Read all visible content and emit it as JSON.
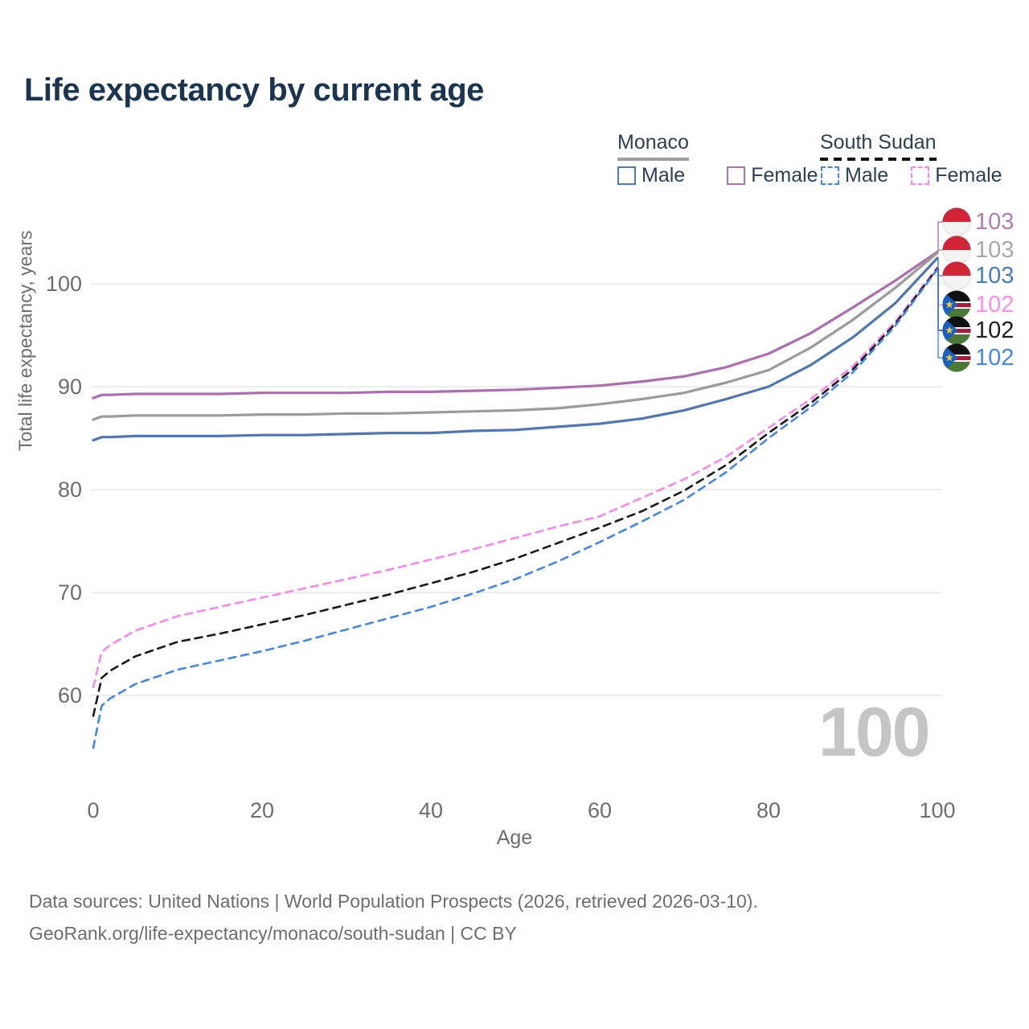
{
  "title": "Life expectancy by current age",
  "legend": {
    "monaco": {
      "label": "Monaco",
      "male": "Male",
      "female": "Female"
    },
    "south_sudan": {
      "label": "South Sudan",
      "male": "Male",
      "female": "Female"
    }
  },
  "y_axis": {
    "title": "Total life expectancy, years",
    "ticks": [
      100,
      90,
      80,
      70,
      60
    ]
  },
  "x_axis": {
    "title": "Age",
    "ticks": [
      0,
      20,
      40,
      60,
      80,
      100
    ]
  },
  "watermark": "100",
  "end_labels": [
    {
      "value": "103",
      "color": "#b57ab3",
      "flag": "monaco"
    },
    {
      "value": "103",
      "color": "#a9a9a9",
      "flag": "monaco"
    },
    {
      "value": "103",
      "color": "#4a7cc0",
      "flag": "monaco"
    },
    {
      "value": "102",
      "color": "#ff8df0",
      "flag": "south-sudan"
    },
    {
      "value": "102",
      "color": "#1f1f1f",
      "flag": "south-sudan"
    },
    {
      "value": "102",
      "color": "#4189f2",
      "flag": "south-sudan"
    }
  ],
  "footer": {
    "line1": "Data sources: United Nations | World Population Prospects (2026, retrieved 2026-03-10).",
    "line2": "GeoRank.org/life-expectancy/monaco/south-sudan | CC BY"
  },
  "chart_data": {
    "type": "line",
    "title": "Life expectancy by current age",
    "xlabel": "Age",
    "ylabel": "Total life expectancy, years",
    "xlim": [
      0,
      100
    ],
    "ylim": [
      54,
      105
    ],
    "grid": "horizontal",
    "legend_position": "top-right",
    "x": [
      0,
      1,
      2,
      5,
      10,
      15,
      20,
      25,
      30,
      35,
      40,
      45,
      50,
      55,
      60,
      65,
      70,
      75,
      80,
      85,
      90,
      95,
      100
    ],
    "series": [
      {
        "name": "Monaco Female",
        "country": "Monaco",
        "sex": "Female",
        "style": "solid",
        "color": "#b06cb0",
        "values": [
          88.9,
          89.2,
          89.2,
          89.3,
          89.3,
          89.3,
          89.4,
          89.4,
          89.4,
          89.5,
          89.5,
          89.6,
          89.7,
          89.9,
          90.1,
          90.5,
          91.0,
          91.9,
          93.2,
          95.2,
          97.7,
          100.3,
          103.1
        ]
      },
      {
        "name": "Monaco Both sexes",
        "country": "Monaco",
        "sex": "Both",
        "style": "solid",
        "color": "#9b9b9b",
        "values": [
          86.8,
          87.1,
          87.1,
          87.2,
          87.2,
          87.2,
          87.3,
          87.3,
          87.4,
          87.4,
          87.5,
          87.6,
          87.7,
          87.9,
          88.3,
          88.8,
          89.4,
          90.4,
          91.6,
          93.8,
          96.5,
          99.6,
          103.0
        ]
      },
      {
        "name": "Monaco Male",
        "country": "Monaco",
        "sex": "Male",
        "style": "solid",
        "color": "#4f77b8",
        "values": [
          84.8,
          85.1,
          85.1,
          85.2,
          85.2,
          85.2,
          85.3,
          85.3,
          85.4,
          85.5,
          85.5,
          85.7,
          85.8,
          86.1,
          86.4,
          86.9,
          87.7,
          88.8,
          90.0,
          92.1,
          94.8,
          98.1,
          102.5
        ]
      },
      {
        "name": "South Sudan Female",
        "country": "South Sudan",
        "sex": "Female",
        "style": "dashed",
        "color": "#ff85ea",
        "values": [
          60.8,
          64.2,
          64.9,
          66.3,
          67.7,
          68.6,
          69.5,
          70.4,
          71.3,
          72.2,
          73.2,
          74.2,
          75.3,
          76.4,
          77.4,
          79.2,
          81.0,
          83.2,
          86.0,
          88.8,
          92.0,
          96.3,
          101.6
        ]
      },
      {
        "name": "South Sudan Both sexes",
        "country": "South Sudan",
        "sex": "Both",
        "style": "dashed",
        "color": "#1a1a1a",
        "values": [
          58.0,
          61.7,
          62.4,
          63.8,
          65.2,
          66.0,
          66.9,
          67.8,
          68.8,
          69.8,
          70.9,
          72.0,
          73.3,
          74.8,
          76.3,
          77.9,
          79.9,
          82.4,
          85.5,
          88.4,
          91.7,
          96.1,
          101.5
        ]
      },
      {
        "name": "South Sudan Male",
        "country": "South Sudan",
        "sex": "Male",
        "style": "dashed",
        "color": "#4287f0",
        "values": [
          54.9,
          59.0,
          59.7,
          61.1,
          62.5,
          63.4,
          64.3,
          65.3,
          66.4,
          67.5,
          68.6,
          69.9,
          71.3,
          73.0,
          74.9,
          76.9,
          79.0,
          81.7,
          85.0,
          88.0,
          91.4,
          95.9,
          101.4
        ]
      }
    ]
  }
}
